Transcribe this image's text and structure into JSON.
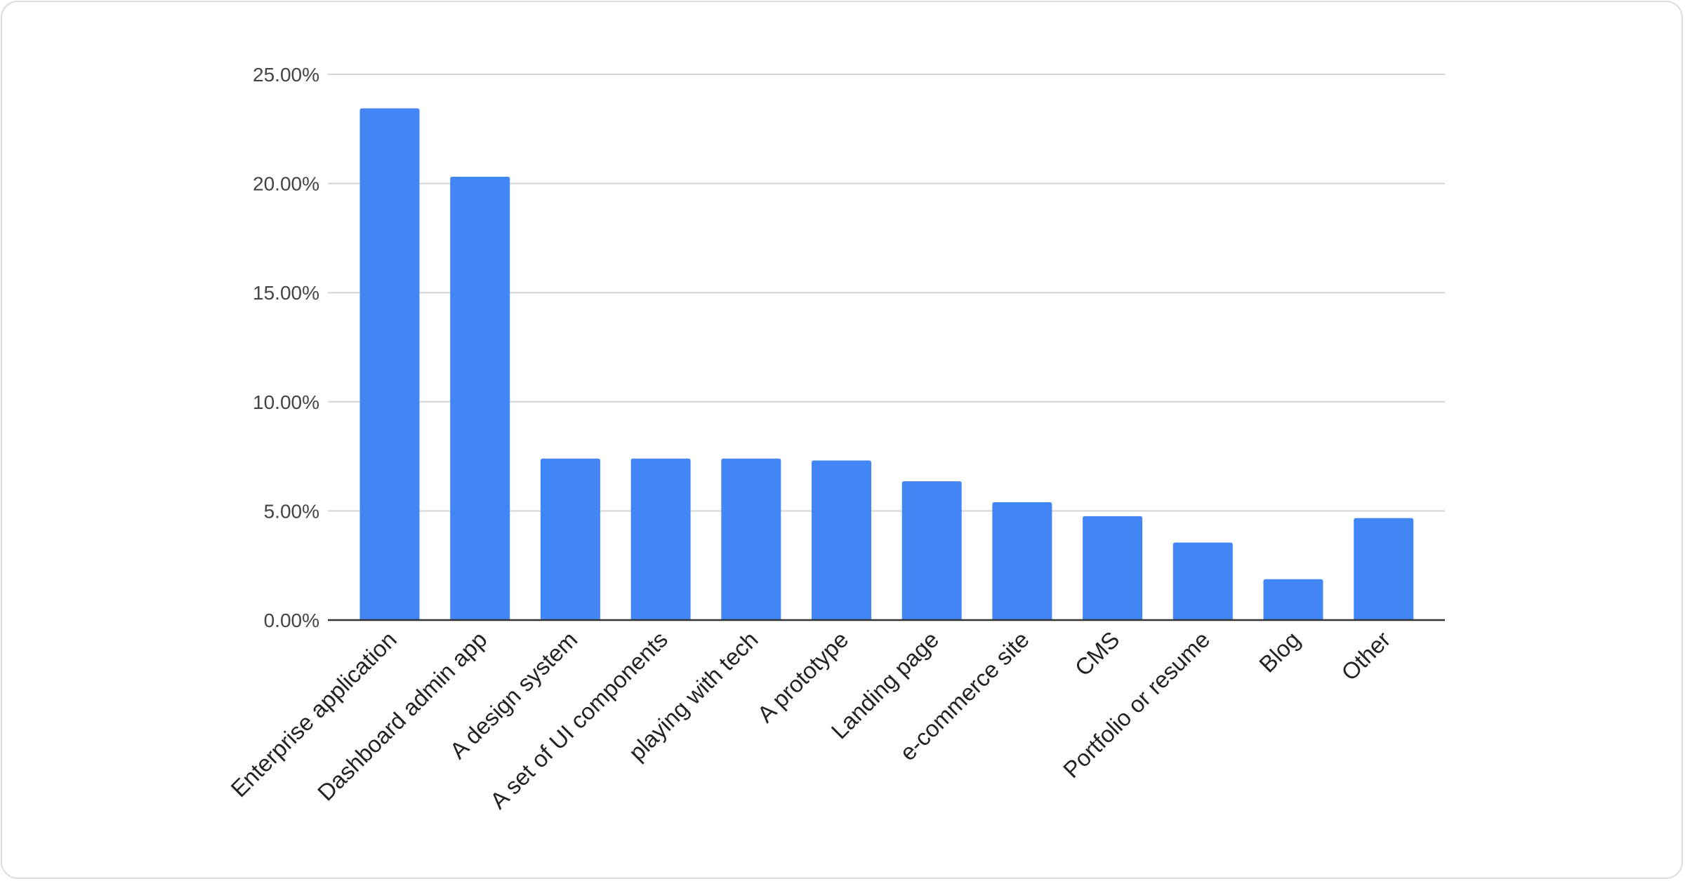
{
  "chart_data": {
    "type": "bar",
    "title": "",
    "xlabel": "",
    "ylabel": "",
    "categories": [
      "Enterprise application",
      "Dashboard admin app",
      "A design system",
      "A set of UI components",
      "playing with tech",
      "A prototype",
      "Landing page",
      "e-commerce site",
      "CMS",
      "Portfolio or resume",
      "Blog",
      "Other"
    ],
    "values": [
      23.44,
      20.31,
      7.4,
      7.4,
      7.4,
      7.31,
      6.36,
      5.4,
      4.76,
      3.55,
      1.87,
      4.67
    ],
    "value_unit": "%",
    "ylim": [
      0,
      25
    ],
    "yticks": [
      "0.00%",
      "5.00%",
      "10.00%",
      "15.00%",
      "20.00%",
      "25.00%"
    ],
    "grid": true,
    "legend": "none",
    "colors": {
      "bar": "#4285f4",
      "grid": "#d3d3d3",
      "axis": "#333333"
    }
  }
}
